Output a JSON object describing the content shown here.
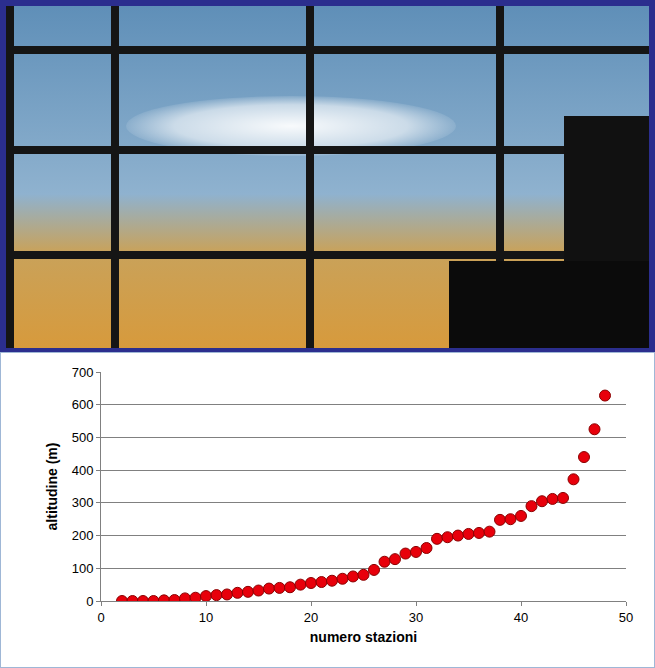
{
  "chart_data": {
    "type": "scatter",
    "x": [
      2,
      3,
      4,
      5,
      6,
      7,
      8,
      9,
      10,
      11,
      12,
      13,
      14,
      15,
      16,
      17,
      18,
      19,
      20,
      21,
      22,
      23,
      24,
      25,
      26,
      27,
      28,
      29,
      30,
      31,
      32,
      33,
      34,
      35,
      36,
      37,
      38,
      39,
      40,
      41,
      42,
      43,
      44,
      45,
      46,
      47,
      48
    ],
    "values": [
      0,
      0,
      0,
      0,
      2,
      3,
      8,
      10,
      15,
      18,
      20,
      25,
      28,
      32,
      38,
      40,
      42,
      50,
      55,
      58,
      62,
      68,
      75,
      80,
      95,
      120,
      128,
      145,
      150,
      162,
      190,
      195,
      200,
      205,
      208,
      212,
      248,
      250,
      260,
      290,
      305,
      312,
      315,
      372,
      440,
      525,
      628
    ],
    "color": "#e8000b",
    "marker": "circle",
    "x_label": "numero stazioni",
    "y_label": "altitudine (m)",
    "xlim": [
      0,
      50
    ],
    "xticks": [
      0,
      10,
      20,
      30,
      40,
      50
    ],
    "ylim": [
      0,
      700
    ],
    "yticks": [
      0,
      100,
      200,
      300,
      400,
      500,
      600,
      700
    ],
    "grid": true
  }
}
